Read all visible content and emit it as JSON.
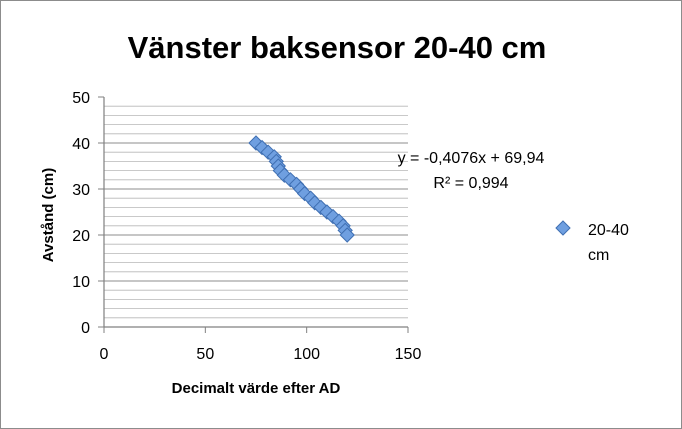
{
  "chart_data": {
    "type": "scatter",
    "title": "Vänster baksensor 20-40 cm",
    "xlabel": "Decimalt värde efter AD",
    "ylabel": "Avstånd (cm)",
    "xlim": [
      0,
      150
    ],
    "ylim": [
      0,
      50
    ],
    "x_ticks": [
      "0",
      "50",
      "100",
      "150"
    ],
    "y_ticks": [
      "0",
      "10",
      "20",
      "30",
      "40",
      "50"
    ],
    "grid": "horizontal",
    "legend_position": "right",
    "series": [
      {
        "name": "20-40\ncm",
        "color": "#6f9fe0",
        "stroke": "#3f6fb2",
        "marker": "diamond",
        "points": [
          [
            75,
            40
          ],
          [
            78,
            39
          ],
          [
            81,
            38
          ],
          [
            84,
            37
          ],
          [
            85,
            36
          ],
          [
            86,
            35
          ],
          [
            87,
            34
          ],
          [
            89,
            33
          ],
          [
            92,
            32
          ],
          [
            95,
            31
          ],
          [
            97,
            30
          ],
          [
            99,
            29
          ],
          [
            102,
            28
          ],
          [
            104,
            27
          ],
          [
            107,
            26
          ],
          [
            110,
            25
          ],
          [
            113,
            24
          ],
          [
            116,
            23
          ],
          [
            118,
            22
          ],
          [
            119,
            21
          ],
          [
            120,
            20
          ]
        ]
      }
    ],
    "trendline": {
      "slope": -0.4076,
      "intercept": 69.94,
      "x_range": [
        77,
        121
      ],
      "equation": "y = -0,4076x + 69,94",
      "r2": "R² = 0,994"
    }
  }
}
